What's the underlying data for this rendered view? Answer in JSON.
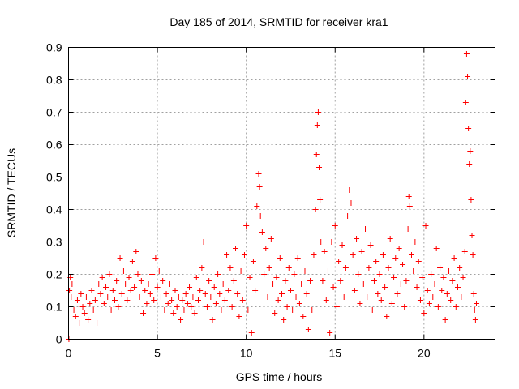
{
  "chart_data": {
    "type": "scatter",
    "title": "Day 185 of 2014, SRMTID for receiver kra1",
    "xlabel": "GPS time / hours",
    "ylabel": "SRMTID / TECUs",
    "xlim": [
      0,
      24
    ],
    "ylim": [
      0,
      0.9
    ],
    "xticks": [
      0,
      5,
      10,
      15,
      20
    ],
    "xtick_labels": [
      "0",
      "5",
      "10",
      "15",
      "20"
    ],
    "yticks": [
      0,
      0.1,
      0.2,
      0.3,
      0.4,
      0.5,
      0.6,
      0.7,
      0.8,
      0.9
    ],
    "ytick_labels": [
      "0",
      "0.1",
      "0.2",
      "0.3",
      "0.4",
      "0.5",
      "0.6",
      "0.7",
      "0.8",
      "0.9"
    ],
    "grid": true,
    "marker": "+",
    "color": "#ff0000",
    "series": [
      {
        "name": "SRMTID",
        "points": [
          [
            0.02,
            0.0
          ],
          [
            0.05,
            0.15
          ],
          [
            0.1,
            0.19
          ],
          [
            0.15,
            0.13
          ],
          [
            0.2,
            0.17
          ],
          [
            0.3,
            0.09
          ],
          [
            0.4,
            0.07
          ],
          [
            0.5,
            0.12
          ],
          [
            0.6,
            0.05
          ],
          [
            0.7,
            0.14
          ],
          [
            0.8,
            0.1
          ],
          [
            0.9,
            0.08
          ],
          [
            1.0,
            0.13
          ],
          [
            1.1,
            0.06
          ],
          [
            1.2,
            0.11
          ],
          [
            1.3,
            0.15
          ],
          [
            1.4,
            0.09
          ],
          [
            1.5,
            0.12
          ],
          [
            1.6,
            0.05
          ],
          [
            1.7,
            0.17
          ],
          [
            1.8,
            0.14
          ],
          [
            1.9,
            0.19
          ],
          [
            2.0,
            0.11
          ],
          [
            2.1,
            0.16
          ],
          [
            2.2,
            0.13
          ],
          [
            2.3,
            0.2
          ],
          [
            2.4,
            0.09
          ],
          [
            2.5,
            0.15
          ],
          [
            2.6,
            0.12
          ],
          [
            2.7,
            0.18
          ],
          [
            2.8,
            0.1
          ],
          [
            2.9,
            0.25
          ],
          [
            3.0,
            0.14
          ],
          [
            3.1,
            0.21
          ],
          [
            3.2,
            0.17
          ],
          [
            3.3,
            0.12
          ],
          [
            3.4,
            0.19
          ],
          [
            3.5,
            0.15
          ],
          [
            3.6,
            0.24
          ],
          [
            3.7,
            0.16
          ],
          [
            3.8,
            0.27
          ],
          [
            3.9,
            0.2
          ],
          [
            4.0,
            0.13
          ],
          [
            4.1,
            0.18
          ],
          [
            4.2,
            0.08
          ],
          [
            4.3,
            0.15
          ],
          [
            4.4,
            0.11
          ],
          [
            4.5,
            0.17
          ],
          [
            4.6,
            0.14
          ],
          [
            4.7,
            0.2
          ],
          [
            4.8,
            0.12
          ],
          [
            4.9,
            0.25
          ],
          [
            5.0,
            0.16
          ],
          [
            5.1,
            0.21
          ],
          [
            5.2,
            0.13
          ],
          [
            5.3,
            0.18
          ],
          [
            5.4,
            0.09
          ],
          [
            5.5,
            0.14
          ],
          [
            5.6,
            0.11
          ],
          [
            5.7,
            0.17
          ],
          [
            5.8,
            0.12
          ],
          [
            5.9,
            0.08
          ],
          [
            6.0,
            0.15
          ],
          [
            6.1,
            0.1
          ],
          [
            6.2,
            0.13
          ],
          [
            6.3,
            0.06
          ],
          [
            6.4,
            0.12
          ],
          [
            6.5,
            0.09
          ],
          [
            6.6,
            0.14
          ],
          [
            6.7,
            0.11
          ],
          [
            6.8,
            0.16
          ],
          [
            6.9,
            0.1
          ],
          [
            7.0,
            0.13
          ],
          [
            7.1,
            0.08
          ],
          [
            7.2,
            0.19
          ],
          [
            7.3,
            0.12
          ],
          [
            7.4,
            0.15
          ],
          [
            7.5,
            0.22
          ],
          [
            7.6,
            0.3
          ],
          [
            7.7,
            0.14
          ],
          [
            7.8,
            0.1
          ],
          [
            7.9,
            0.18
          ],
          [
            8.0,
            0.13
          ],
          [
            8.1,
            0.06
          ],
          [
            8.2,
            0.16
          ],
          [
            8.3,
            0.11
          ],
          [
            8.4,
            0.2
          ],
          [
            8.5,
            0.14
          ],
          [
            8.6,
            0.09
          ],
          [
            8.7,
            0.17
          ],
          [
            8.8,
            0.12
          ],
          [
            8.9,
            0.26
          ],
          [
            9.0,
            0.15
          ],
          [
            9.1,
            0.22
          ],
          [
            9.2,
            0.1
          ],
          [
            9.3,
            0.18
          ],
          [
            9.4,
            0.28
          ],
          [
            9.5,
            0.14
          ],
          [
            9.6,
            0.07
          ],
          [
            9.7,
            0.21
          ],
          [
            9.8,
            0.12
          ],
          [
            9.9,
            0.26
          ],
          [
            10.0,
            0.35
          ],
          [
            10.1,
            0.09
          ],
          [
            10.2,
            0.19
          ],
          [
            10.3,
            0.02
          ],
          [
            10.4,
            0.24
          ],
          [
            10.5,
            0.15
          ],
          [
            10.6,
            0.41
          ],
          [
            10.7,
            0.51
          ],
          [
            10.75,
            0.47
          ],
          [
            10.8,
            0.38
          ],
          [
            10.9,
            0.33
          ],
          [
            11.0,
            0.2
          ],
          [
            11.1,
            0.28
          ],
          [
            11.2,
            0.13
          ],
          [
            11.3,
            0.22
          ],
          [
            11.4,
            0.31
          ],
          [
            11.5,
            0.17
          ],
          [
            11.6,
            0.08
          ],
          [
            11.7,
            0.19
          ],
          [
            11.8,
            0.12
          ],
          [
            11.9,
            0.25
          ],
          [
            12.0,
            0.14
          ],
          [
            12.1,
            0.06
          ],
          [
            12.2,
            0.18
          ],
          [
            12.3,
            0.1
          ],
          [
            12.4,
            0.22
          ],
          [
            12.5,
            0.15
          ],
          [
            12.6,
            0.09
          ],
          [
            12.7,
            0.2
          ],
          [
            12.8,
            0.13
          ],
          [
            12.9,
            0.25
          ],
          [
            13.0,
            0.11
          ],
          [
            13.1,
            0.17
          ],
          [
            13.2,
            0.07
          ],
          [
            13.3,
            0.21
          ],
          [
            13.4,
            0.14
          ],
          [
            13.5,
            0.03
          ],
          [
            13.6,
            0.18
          ],
          [
            13.7,
            0.09
          ],
          [
            13.8,
            0.26
          ],
          [
            13.9,
            0.4
          ],
          [
            13.95,
            0.57
          ],
          [
            14.0,
            0.66
          ],
          [
            14.05,
            0.7
          ],
          [
            14.1,
            0.53
          ],
          [
            14.15,
            0.43
          ],
          [
            14.2,
            0.3
          ],
          [
            14.3,
            0.18
          ],
          [
            14.4,
            0.27
          ],
          [
            14.5,
            0.12
          ],
          [
            14.6,
            0.21
          ],
          [
            14.7,
            0.02
          ],
          [
            14.8,
            0.3
          ],
          [
            14.9,
            0.16
          ],
          [
            15.0,
            0.35
          ],
          [
            15.1,
            0.1
          ],
          [
            15.2,
            0.24
          ],
          [
            15.3,
            0.18
          ],
          [
            15.4,
            0.29
          ],
          [
            15.5,
            0.13
          ],
          [
            15.6,
            0.22
          ],
          [
            15.7,
            0.38
          ],
          [
            15.8,
            0.46
          ],
          [
            15.9,
            0.42
          ],
          [
            16.0,
            0.26
          ],
          [
            16.1,
            0.15
          ],
          [
            16.2,
            0.31
          ],
          [
            16.3,
            0.2
          ],
          [
            16.4,
            0.11
          ],
          [
            16.5,
            0.27
          ],
          [
            16.6,
            0.17
          ],
          [
            16.7,
            0.34
          ],
          [
            16.8,
            0.13
          ],
          [
            16.9,
            0.22
          ],
          [
            17.0,
            0.29
          ],
          [
            17.1,
            0.09
          ],
          [
            17.2,
            0.18
          ],
          [
            17.3,
            0.24
          ],
          [
            17.4,
            0.14
          ],
          [
            17.5,
            0.2
          ],
          [
            17.6,
            0.12
          ],
          [
            17.7,
            0.26
          ],
          [
            17.8,
            0.16
          ],
          [
            17.9,
            0.07
          ],
          [
            18.0,
            0.22
          ],
          [
            18.1,
            0.31
          ],
          [
            18.2,
            0.11
          ],
          [
            18.3,
            0.19
          ],
          [
            18.4,
            0.25
          ],
          [
            18.5,
            0.14
          ],
          [
            18.6,
            0.28
          ],
          [
            18.7,
            0.17
          ],
          [
            18.8,
            0.23
          ],
          [
            18.9,
            0.1
          ],
          [
            19.0,
            0.18
          ],
          [
            19.1,
            0.34
          ],
          [
            19.15,
            0.44
          ],
          [
            19.2,
            0.41
          ],
          [
            19.3,
            0.26
          ],
          [
            19.4,
            0.21
          ],
          [
            19.5,
            0.3
          ],
          [
            19.6,
            0.16
          ],
          [
            19.7,
            0.24
          ],
          [
            19.8,
            0.12
          ],
          [
            19.9,
            0.19
          ],
          [
            20.0,
            0.08
          ],
          [
            20.1,
            0.35
          ],
          [
            20.2,
            0.15
          ],
          [
            20.3,
            0.11
          ],
          [
            20.4,
            0.2
          ],
          [
            20.5,
            0.13
          ],
          [
            20.6,
            0.17
          ],
          [
            20.7,
            0.28
          ],
          [
            20.8,
            0.1
          ],
          [
            20.9,
            0.22
          ],
          [
            21.0,
            0.15
          ],
          [
            21.1,
            0.19
          ],
          [
            21.2,
            0.06
          ],
          [
            21.3,
            0.14
          ],
          [
            21.4,
            0.21
          ],
          [
            21.5,
            0.12
          ],
          [
            21.6,
            0.18
          ],
          [
            21.7,
            0.25
          ],
          [
            21.8,
            0.1
          ],
          [
            21.9,
            0.16
          ],
          [
            22.0,
            0.22
          ],
          [
            22.1,
            0.13
          ],
          [
            22.2,
            0.19
          ],
          [
            22.3,
            0.27
          ],
          [
            22.35,
            0.73
          ],
          [
            22.4,
            0.88
          ],
          [
            22.45,
            0.81
          ],
          [
            22.5,
            0.65
          ],
          [
            22.55,
            0.54
          ],
          [
            22.6,
            0.58
          ],
          [
            22.65,
            0.43
          ],
          [
            22.7,
            0.32
          ],
          [
            22.75,
            0.26
          ],
          [
            22.8,
            0.14
          ],
          [
            22.85,
            0.09
          ],
          [
            22.9,
            0.06
          ],
          [
            22.95,
            0.11
          ]
        ]
      }
    ]
  }
}
